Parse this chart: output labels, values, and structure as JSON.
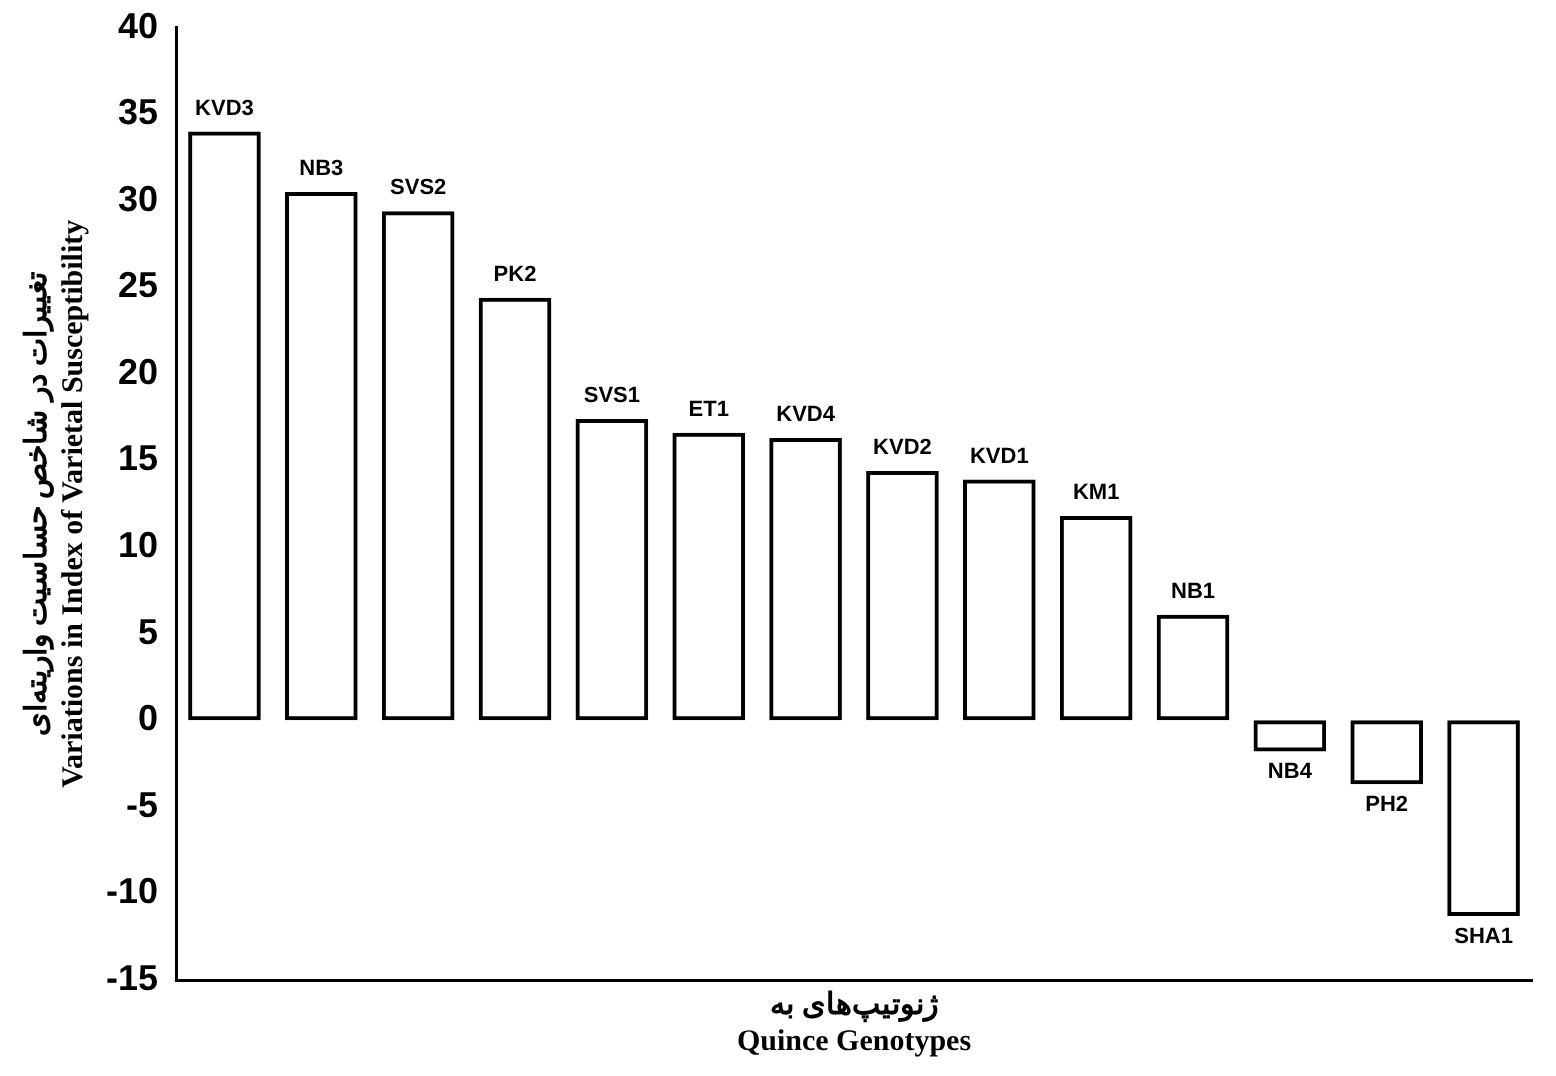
{
  "chart_data": {
    "type": "bar",
    "xlabel": "ژنوتیپ‌های به\nQuince Genotypes",
    "ylabel": "تغییرات در شاخص حساسیت واریته‌ای\nVariations in Index of Varietal Susceptibility",
    "categories": [
      "KVD3",
      "NB3",
      "SVS2",
      "PK2",
      "SVS1",
      "ET1",
      "KVD4",
      "KVD2",
      "KVD1",
      "KM1",
      "NB1",
      "NB4",
      "PH2",
      "SHA1"
    ],
    "values": [
      34.0,
      30.5,
      29.4,
      24.4,
      17.4,
      16.6,
      16.3,
      14.4,
      13.9,
      11.8,
      6.1,
      -1.8,
      -3.7,
      -11.3
    ],
    "color": "#000000",
    "ylim": [
      -15,
      40
    ],
    "yticks": [
      -15,
      -10,
      -5,
      0,
      5,
      10,
      15,
      20,
      25,
      30,
      35,
      40
    ],
    "grid": false,
    "legend": false,
    "tick_labels": "y"
  }
}
